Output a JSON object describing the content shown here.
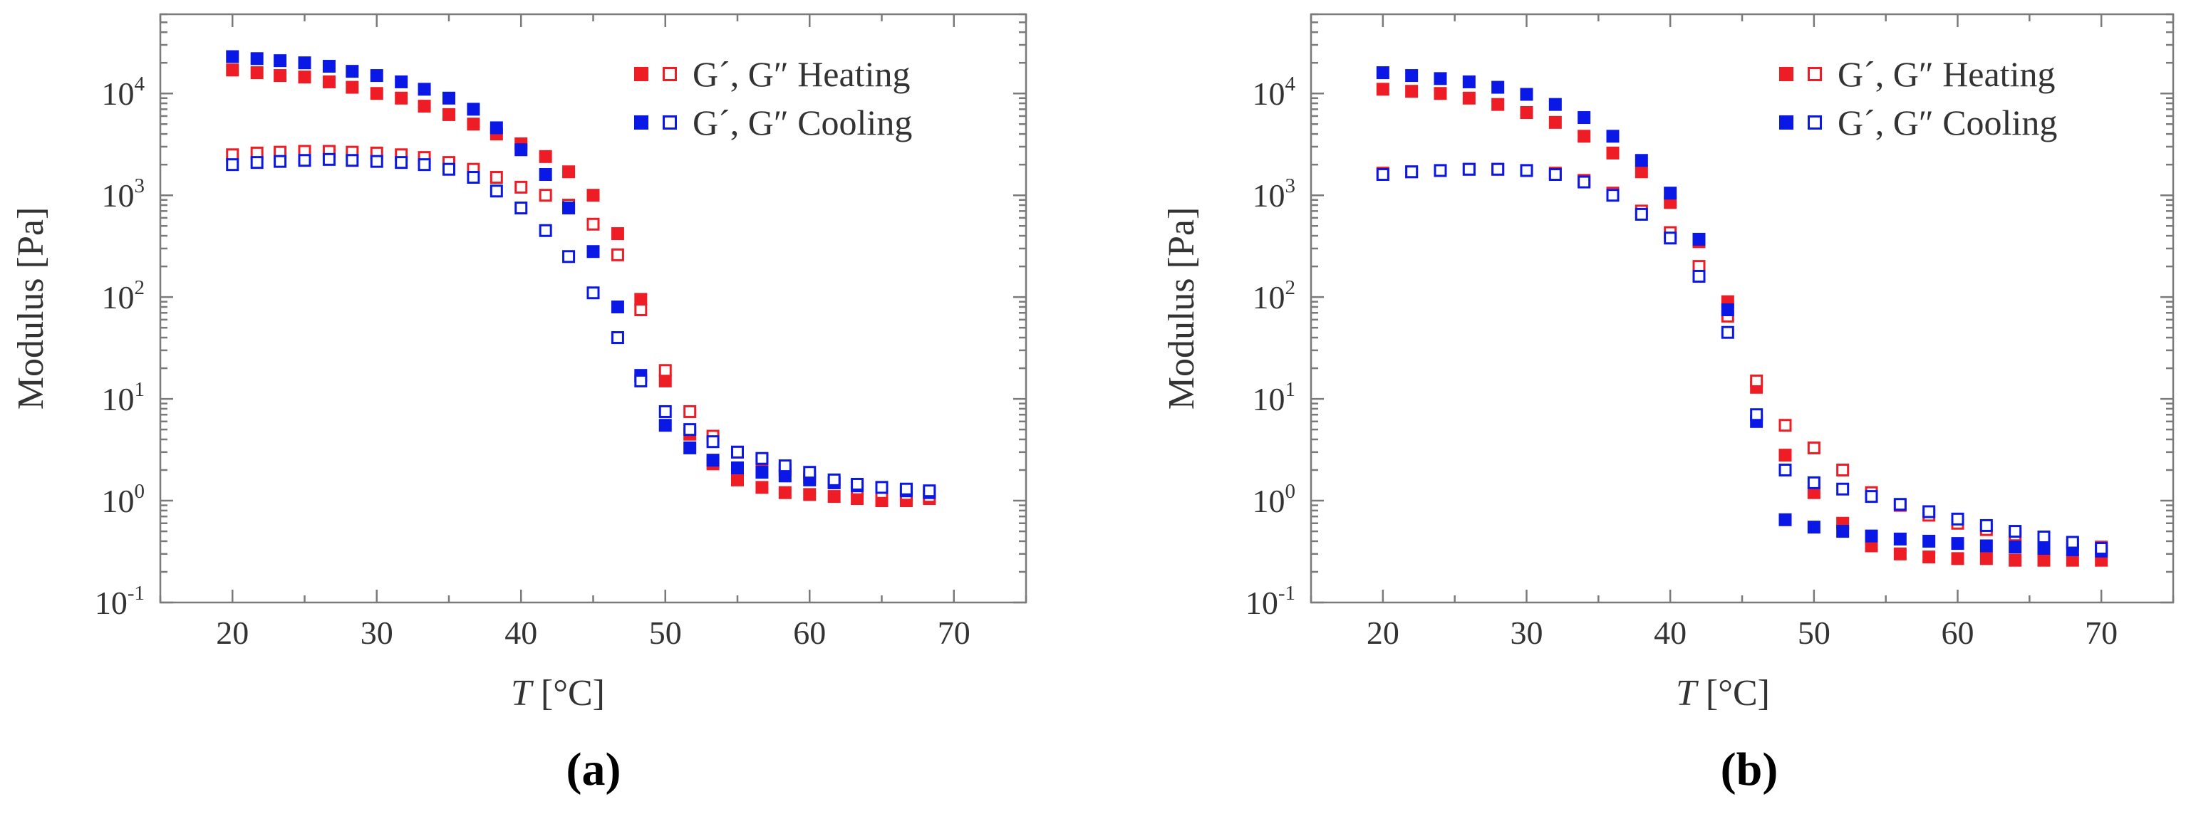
{
  "colors": {
    "heating": "#ee1c25",
    "cooling": "#0a18e6",
    "axis": "#7a7a7a"
  },
  "chart_data": [
    {
      "type": "scatter",
      "panel_label": "(a)",
      "xlabel_italic": "T",
      "xlabel_unit": " [°C]",
      "ylabel": "Modulus [Pa]",
      "xlim": [
        15,
        75
      ],
      "ylim": [
        0.1,
        60000
      ],
      "yscale": "log",
      "x_ticks": [
        20,
        30,
        40,
        50,
        60,
        70
      ],
      "y_ticks": [
        {
          "value": 0.1,
          "base": "10",
          "exp": "-1"
        },
        {
          "value": 1,
          "base": "10",
          "exp": "0"
        },
        {
          "value": 10,
          "base": "10",
          "exp": "1"
        },
        {
          "value": 100,
          "base": "10",
          "exp": "2"
        },
        {
          "value": 1000,
          "base": "10",
          "exp": "3"
        },
        {
          "value": 10000,
          "base": "10",
          "exp": "4"
        }
      ],
      "legend": [
        {
          "label": "G´, G″ Heating",
          "color": "heating"
        },
        {
          "label": "G´, G″ Cooling",
          "color": "cooling"
        }
      ],
      "legend_position": "top-right",
      "series": [
        {
          "color": "heating",
          "filled": true,
          "x": [
            20,
            21.7,
            23.3,
            25,
            26.7,
            28.3,
            30,
            31.7,
            33.3,
            35,
            36.7,
            38.3,
            40,
            41.7,
            43.3,
            45,
            46.7,
            48.3,
            50,
            51.7,
            53.3,
            55,
            56.7,
            58.3,
            60,
            61.7,
            63.3,
            65,
            66.7,
            68.3
          ],
          "y": [
            17000,
            16000,
            15000,
            14500,
            13000,
            11500,
            10000,
            9000,
            7500,
            6200,
            5000,
            4000,
            3200,
            2400,
            1700,
            1000,
            420,
            95,
            15,
            4.5,
            2.3,
            1.6,
            1.35,
            1.2,
            1.15,
            1.1,
            1.05,
            1.0,
            1.0,
            1.05
          ]
        },
        {
          "color": "heating",
          "filled": false,
          "x": [
            20,
            21.7,
            23.3,
            25,
            26.7,
            28.3,
            30,
            31.7,
            33.3,
            35,
            36.7,
            38.3,
            40,
            41.7,
            43.3,
            45,
            46.7,
            48.3,
            50,
            51.7,
            53.3,
            55,
            56.7,
            58.3,
            60,
            61.7,
            63.3,
            65,
            66.7,
            68.3
          ],
          "y": [
            2500,
            2600,
            2650,
            2700,
            2700,
            2650,
            2600,
            2500,
            2350,
            2100,
            1800,
            1500,
            1200,
            1000,
            800,
            520,
            260,
            75,
            19,
            7.5,
            4.3,
            3.0,
            2.5,
            2.0,
            1.7,
            1.5,
            1.3,
            1.2,
            1.15,
            1.1
          ]
        },
        {
          "color": "cooling",
          "filled": true,
          "x": [
            20,
            21.7,
            23.3,
            25,
            26.7,
            28.3,
            30,
            31.7,
            33.3,
            35,
            36.7,
            38.3,
            40,
            41.7,
            43.3,
            45,
            46.7,
            48.3,
            50,
            51.7,
            53.3,
            55,
            56.7,
            58.3,
            60,
            61.7,
            63.3,
            65,
            66.7,
            68.3
          ],
          "y": [
            23000,
            22000,
            21000,
            20000,
            18500,
            16500,
            15000,
            13000,
            11000,
            9000,
            7000,
            4600,
            2800,
            1600,
            750,
            280,
            80,
            17,
            5.5,
            3.3,
            2.5,
            2.1,
            1.9,
            1.75,
            1.6,
            1.5,
            1.4,
            1.35,
            1.25,
            1.2
          ]
        },
        {
          "color": "cooling",
          "filled": false,
          "x": [
            20,
            21.7,
            23.3,
            25,
            26.7,
            28.3,
            30,
            31.7,
            33.3,
            35,
            36.7,
            38.3,
            40,
            41.7,
            43.3,
            45,
            46.7,
            48.3,
            50,
            51.7,
            53.3,
            55,
            56.7,
            58.3,
            60,
            61.7,
            63.3,
            65,
            66.7,
            68.3
          ],
          "y": [
            2000,
            2100,
            2150,
            2200,
            2250,
            2200,
            2150,
            2100,
            2000,
            1800,
            1500,
            1100,
            750,
            450,
            250,
            110,
            40,
            15,
            7.5,
            5.0,
            3.8,
            3.0,
            2.6,
            2.2,
            1.9,
            1.6,
            1.45,
            1.35,
            1.3,
            1.25
          ]
        }
      ]
    },
    {
      "type": "scatter",
      "panel_label": "(b)",
      "xlabel_italic": "T",
      "xlabel_unit": " [°C]",
      "ylabel": "Modulus [Pa]",
      "xlim": [
        15,
        75
      ],
      "ylim": [
        0.1,
        60000
      ],
      "yscale": "log",
      "x_ticks": [
        20,
        30,
        40,
        50,
        60,
        70
      ],
      "y_ticks": [
        {
          "value": 0.1,
          "base": "10",
          "exp": "-1"
        },
        {
          "value": 1,
          "base": "10",
          "exp": "0"
        },
        {
          "value": 10,
          "base": "10",
          "exp": "1"
        },
        {
          "value": 100,
          "base": "10",
          "exp": "2"
        },
        {
          "value": 1000,
          "base": "10",
          "exp": "3"
        },
        {
          "value": 10000,
          "base": "10",
          "exp": "4"
        }
      ],
      "legend": [
        {
          "label": "G´, G″ Heating",
          "color": "heating"
        },
        {
          "label": "G´, G″ Cooling",
          "color": "cooling"
        }
      ],
      "legend_position": "top-right",
      "series": [
        {
          "color": "heating",
          "filled": true,
          "x": [
            20,
            22,
            24,
            26,
            28,
            30,
            32,
            34,
            36,
            38,
            40,
            42,
            44,
            46,
            48,
            50,
            52,
            54,
            56,
            58,
            60,
            62,
            64,
            66,
            68,
            70
          ],
          "y": [
            11000,
            10500,
            10000,
            9000,
            7800,
            6500,
            5200,
            3800,
            2600,
            1700,
            850,
            350,
            90,
            13,
            2.8,
            1.2,
            0.6,
            0.36,
            0.3,
            0.28,
            0.27,
            0.27,
            0.26,
            0.26,
            0.26,
            0.26
          ]
        },
        {
          "color": "heating",
          "filled": false,
          "x": [
            20,
            22,
            24,
            26,
            28,
            30,
            32,
            34,
            36,
            38,
            40,
            42,
            44,
            46,
            48,
            50,
            52,
            54,
            56,
            58,
            60,
            62,
            64,
            66,
            68,
            70
          ],
          "y": [
            1650,
            1700,
            1750,
            1800,
            1800,
            1750,
            1650,
            1400,
            1050,
            700,
            430,
            200,
            65,
            15,
            5.5,
            3.3,
            2.0,
            1.2,
            0.9,
            0.72,
            0.6,
            0.52,
            0.46,
            0.42,
            0.38,
            0.35
          ]
        },
        {
          "color": "cooling",
          "filled": true,
          "x": [
            20,
            22,
            24,
            26,
            28,
            30,
            32,
            34,
            36,
            38,
            40,
            42,
            44,
            46,
            48,
            50,
            52,
            54,
            56,
            58,
            60,
            62,
            64,
            66,
            68,
            70
          ],
          "y": [
            16000,
            15000,
            14000,
            13000,
            11500,
            9800,
            7800,
            5800,
            3800,
            2200,
            1050,
            370,
            75,
            6,
            0.65,
            0.55,
            0.5,
            0.45,
            0.42,
            0.4,
            0.38,
            0.36,
            0.35,
            0.34,
            0.33,
            0.32
          ]
        },
        {
          "color": "cooling",
          "filled": false,
          "x": [
            20,
            22,
            24,
            26,
            28,
            30,
            32,
            34,
            36,
            38,
            40,
            42,
            44,
            46,
            48,
            50,
            52,
            54,
            56,
            58,
            60,
            62,
            64,
            66,
            68,
            70
          ],
          "y": [
            1600,
            1700,
            1750,
            1800,
            1800,
            1750,
            1600,
            1350,
            1000,
            650,
            380,
            160,
            45,
            7,
            2.0,
            1.5,
            1.3,
            1.1,
            0.92,
            0.78,
            0.66,
            0.57,
            0.5,
            0.44,
            0.39,
            0.34
          ]
        }
      ]
    }
  ]
}
